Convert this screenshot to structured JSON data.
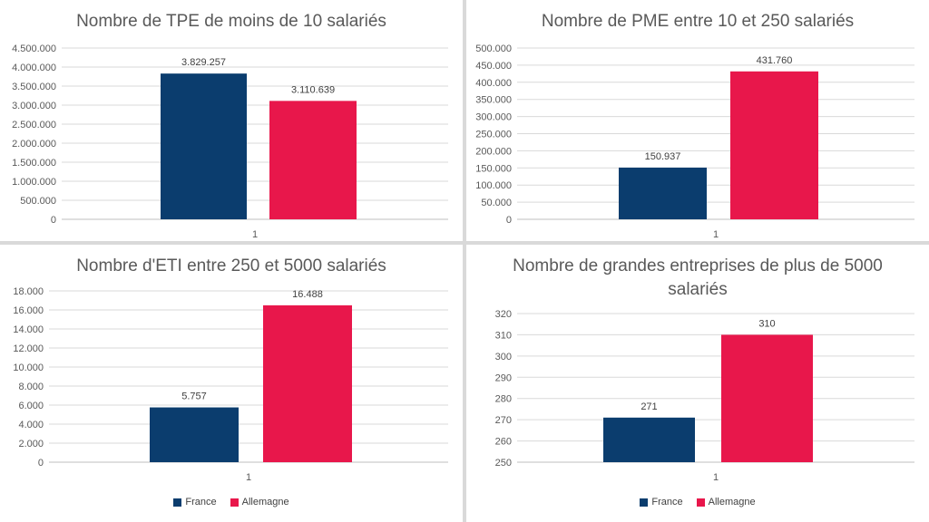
{
  "colors": {
    "France": "#0b3d6e",
    "Allemagne": "#e8174b",
    "grid": "#d9d9d9",
    "text": "#595959"
  },
  "legend": {
    "items": [
      "France",
      "Allemagne"
    ]
  },
  "chart_data": [
    {
      "type": "bar",
      "title": "Nombre de TPE de moins de 10 salariés",
      "categories": [
        "1"
      ],
      "series": [
        {
          "name": "France",
          "values": [
            3829257
          ]
        },
        {
          "name": "Allemagne",
          "values": [
            3110639
          ]
        }
      ],
      "data_labels": [
        "3.829.257",
        "3.110.639"
      ],
      "yticks": [
        "0",
        "500.000",
        "1.000.000",
        "1.500.000",
        "2.000.000",
        "2.500.000",
        "3.000.000",
        "3.500.000",
        "4.000.000",
        "4.500.000"
      ],
      "ylim": [
        0,
        4500000
      ],
      "grid": true
    },
    {
      "type": "bar",
      "title": "Nombre de PME entre 10 et 250 salariés",
      "categories": [
        "1"
      ],
      "series": [
        {
          "name": "France",
          "values": [
            150937
          ]
        },
        {
          "name": "Allemagne",
          "values": [
            431760
          ]
        }
      ],
      "data_labels": [
        "150.937",
        "431.760"
      ],
      "yticks": [
        "0",
        "50.000",
        "100.000",
        "150.000",
        "200.000",
        "250.000",
        "300.000",
        "350.000",
        "400.000",
        "450.000",
        "500.000"
      ],
      "ylim": [
        0,
        500000
      ],
      "grid": true
    },
    {
      "type": "bar",
      "title": "Nombre d'ETI entre 250 et 5000 salariés",
      "categories": [
        "1"
      ],
      "series": [
        {
          "name": "France",
          "values": [
            5757
          ]
        },
        {
          "name": "Allemagne",
          "values": [
            16488
          ]
        }
      ],
      "data_labels": [
        "5.757",
        "16.488"
      ],
      "yticks": [
        "0",
        "2.000",
        "4.000",
        "6.000",
        "8.000",
        "10.000",
        "12.000",
        "14.000",
        "16.000",
        "18.000"
      ],
      "ylim": [
        0,
        18000
      ],
      "grid": true,
      "legend": "bottom"
    },
    {
      "type": "bar",
      "title": "Nombre de grandes entreprises de plus de 5000 salariés",
      "title_lines": [
        "Nombre de grandes entreprises de plus de 5000",
        "salariés"
      ],
      "categories": [
        "1"
      ],
      "series": [
        {
          "name": "France",
          "values": [
            271
          ]
        },
        {
          "name": "Allemagne",
          "values": [
            310
          ]
        }
      ],
      "data_labels": [
        "271",
        "310"
      ],
      "yticks": [
        "250",
        "260",
        "270",
        "280",
        "290",
        "300",
        "310",
        "320"
      ],
      "ylim": [
        250,
        320
      ],
      "grid": true,
      "legend": "bottom"
    }
  ]
}
